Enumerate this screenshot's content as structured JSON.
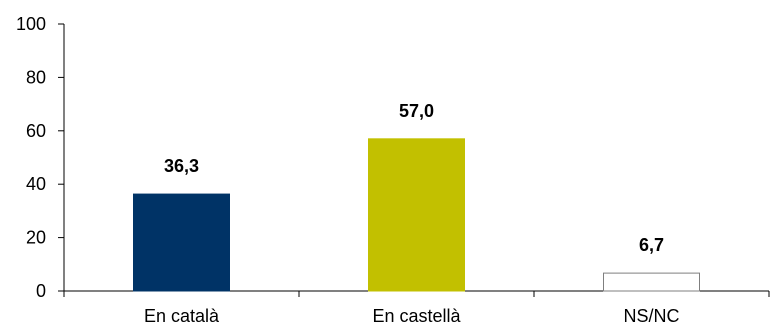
{
  "chart_data": {
    "type": "bar",
    "categories": [
      "En català",
      "En castellà",
      "NS/NC"
    ],
    "values": [
      36.3,
      57.0,
      6.7
    ],
    "data_labels": [
      "36,3",
      "57,0",
      "6,7"
    ],
    "ylim": [
      0,
      100
    ],
    "yticks": [
      0,
      20,
      40,
      60,
      80,
      100
    ],
    "ytick_labels": [
      "0",
      "20",
      "40",
      "60",
      "80",
      "100"
    ],
    "grid": false,
    "legend": "none",
    "title": "",
    "xlabel": "",
    "ylabel": "",
    "colors": [
      "#003366",
      "#c2c000",
      "#ffffff"
    ],
    "edge_colors": [
      "#003366",
      "#c2c000",
      "#7f7f7f"
    ],
    "axis_color": "#000000"
  }
}
